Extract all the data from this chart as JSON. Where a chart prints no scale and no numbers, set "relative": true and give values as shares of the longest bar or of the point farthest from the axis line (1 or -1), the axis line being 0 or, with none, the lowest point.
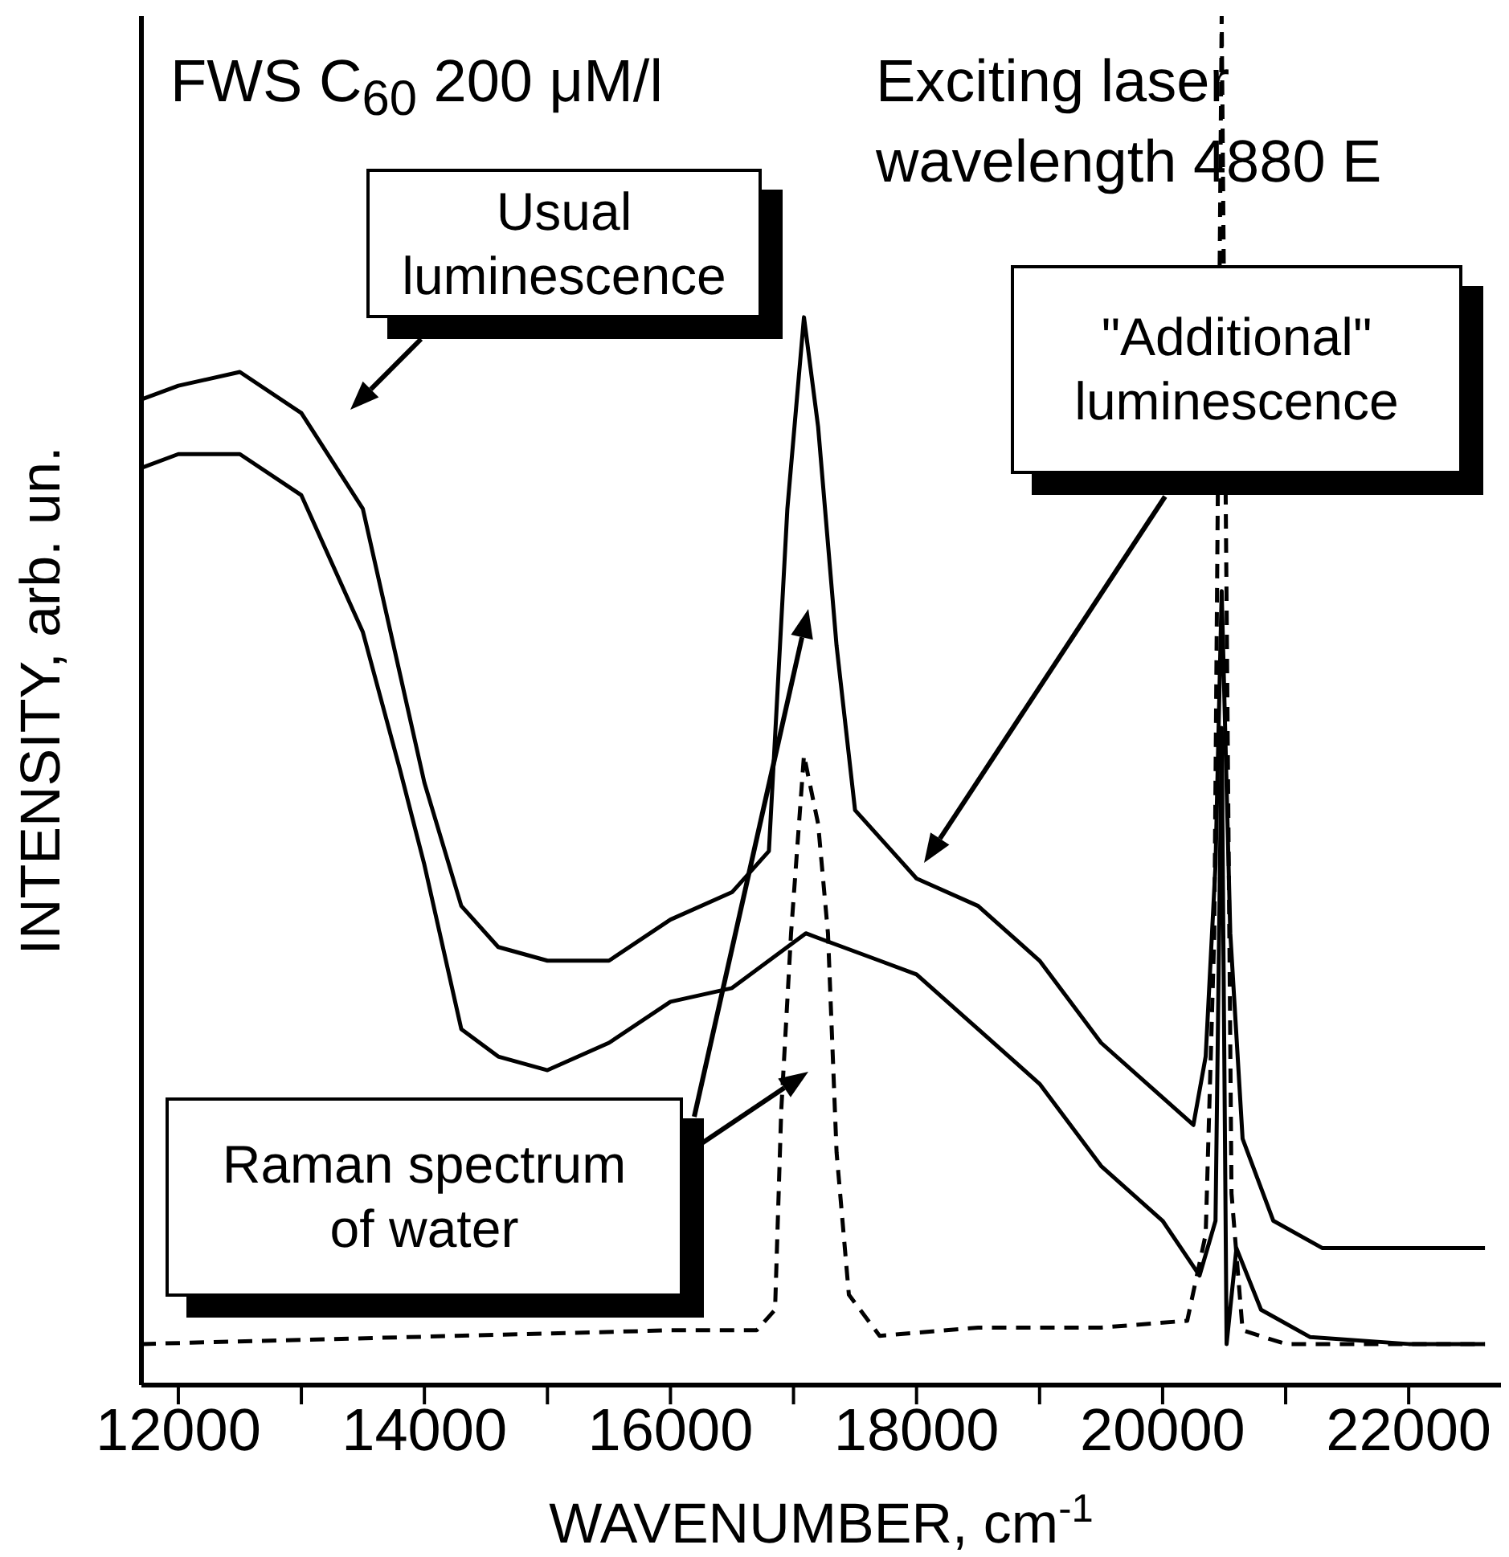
{
  "chart_data": {
    "type": "line",
    "relative": true,
    "xlabel": "WAVENUMBER, cm$^{-1}$",
    "ylabel": "INTENSITY, arb. un.",
    "xlim": [
      11700,
      22750
    ],
    "xticks": [
      12000,
      {
        "value": 13000,
        "label": null
      },
      14000,
      {
        "value": 15000,
        "label": null
      },
      16000,
      {
        "value": 17000,
        "label": null
      },
      18000,
      {
        "value": 19000,
        "label": null
      },
      20000,
      {
        "value": 21000,
        "label": null
      },
      22000
    ],
    "tick_labels": "x",
    "marker": "none",
    "annotations": [
      "FWS C$_{60}$ 200 μM/l",
      "Exciting laser wavelength 4880 E",
      "Usual luminescence",
      "\"Additional\" luminescence",
      "Raman spectrum of water"
    ],
    "series": [
      {
        "color": "#000000",
        "line_style": "solid",
        "x": [
          11700,
          12000,
          12500,
          13000,
          13500,
          13800,
          14000,
          14300,
          14600,
          15000,
          15500,
          16000,
          16500,
          16800,
          16950,
          17085,
          17200,
          17350,
          17500,
          17800,
          18000,
          18500,
          19000,
          19500,
          20000,
          20250,
          20350,
          20430,
          20480,
          20550,
          20650,
          20900,
          21300,
          22000,
          22620
        ],
        "values": [
          0.72,
          0.73,
          0.74,
          0.71,
          0.64,
          0.52,
          0.44,
          0.35,
          0.32,
          0.31,
          0.31,
          0.34,
          0.36,
          0.39,
          0.64,
          0.78,
          0.7,
          0.54,
          0.42,
          0.39,
          0.37,
          0.35,
          0.31,
          0.25,
          0.21,
          0.19,
          0.24,
          0.38,
          0.58,
          0.33,
          0.18,
          0.12,
          0.1,
          0.1,
          0.1
        ]
      },
      {
        "color": "#000000",
        "line_style": "solid",
        "x": [
          11700,
          12000,
          12500,
          13000,
          13500,
          13800,
          14000,
          14300,
          14600,
          15000,
          15500,
          16000,
          16500,
          16800,
          17100,
          17400,
          17700,
          18000,
          18500,
          19000,
          19500,
          20000,
          20300,
          20430,
          20480,
          20520,
          20600,
          20800,
          21200,
          22000,
          22620
        ],
        "values": [
          0.67,
          0.68,
          0.68,
          0.65,
          0.55,
          0.45,
          0.38,
          0.26,
          0.24,
          0.23,
          0.25,
          0.28,
          0.29,
          0.31,
          0.33,
          0.32,
          0.31,
          0.3,
          0.26,
          0.22,
          0.16,
          0.12,
          0.08,
          0.12,
          0.48,
          0.03,
          0.1,
          0.055,
          0.035,
          0.03,
          0.03
        ]
      },
      {
        "color": "#000000",
        "line_style": "dashed",
        "x": [
          11700,
          16000,
          16700,
          16850,
          16900,
          16980,
          17085,
          17200,
          17280,
          17350,
          17450,
          17700,
          18500,
          19500,
          20200,
          20350,
          20420,
          20480,
          20560,
          20650,
          21000,
          22620
        ],
        "values": [
          0.03,
          0.04,
          0.04,
          0.055,
          0.2,
          0.33,
          0.46,
          0.41,
          0.33,
          0.17,
          0.066,
          0.036,
          0.042,
          0.042,
          0.047,
          0.11,
          0.33,
          1,
          0.14,
          0.04,
          0.03,
          0.03
        ]
      }
    ]
  }
}
